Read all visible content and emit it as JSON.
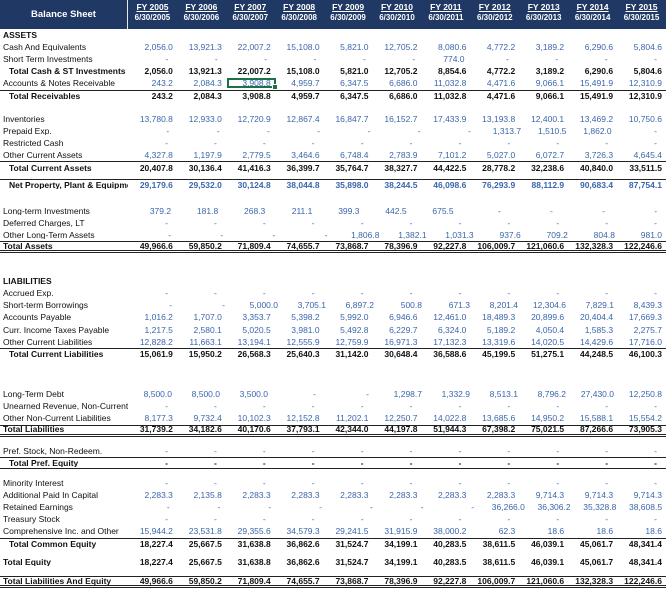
{
  "title": "Balance Sheet",
  "colors": {
    "header_bg": "#1f3864",
    "header_text": "#ffffff",
    "value_blue": "#3a66ad",
    "total_text": "#111111",
    "selection_green": "#1e7145"
  },
  "columns": [
    {
      "fy": "FY 2005",
      "date": "6/30/2005"
    },
    {
      "fy": "FY 2006",
      "date": "6/30/2006"
    },
    {
      "fy": "FY 2007",
      "date": "6/30/2007"
    },
    {
      "fy": "FY 2008",
      "date": "6/30/2008"
    },
    {
      "fy": "FY 2009",
      "date": "6/30/2009"
    },
    {
      "fy": "FY 2010",
      "date": "6/30/2010"
    },
    {
      "fy": "FY 2011",
      "date": "6/30/2011"
    },
    {
      "fy": "FY 2012",
      "date": "6/30/2012"
    },
    {
      "fy": "FY 2013",
      "date": "6/30/2013"
    },
    {
      "fy": "FY 2014",
      "date": "6/30/2014"
    },
    {
      "fy": "FY 2015",
      "date": "6/30/2015"
    }
  ],
  "selection": {
    "row_label": "Accounts & Notes Receivable",
    "column": "FY 2007",
    "col_index": 2,
    "value": "3,908.8"
  },
  "rows": [
    {
      "label": "ASSETS",
      "type": "section"
    },
    {
      "label": "Cash And Equivalents",
      "type": "data",
      "values": [
        "2,056.0",
        "13,921.3",
        "22,007.2",
        "15,108.0",
        "5,821.0",
        "12,705.2",
        "8,080.6",
        "4,772.2",
        "3,189.2",
        "6,290.6",
        "5,804.6"
      ]
    },
    {
      "label": "Short Term Investments",
      "type": "data",
      "values": [
        "-",
        "-",
        "-",
        "-",
        "-",
        "-",
        "774.0",
        "-",
        "-",
        "-",
        "-"
      ]
    },
    {
      "label": "Total Cash & ST Investments",
      "type": "total",
      "indent": true,
      "values": [
        "2,056.0",
        "13,921.3",
        "22,007.2",
        "15,108.0",
        "5,821.0",
        "12,705.2",
        "8,854.6",
        "4,772.2",
        "3,189.2",
        "6,290.6",
        "5,804.6"
      ]
    },
    {
      "label": "Accounts & Notes Receivable",
      "type": "data",
      "values": [
        "243.2",
        "2,084.3",
        "3,908.8",
        "4,959.7",
        "6,347.5",
        "6,686.0",
        "11,032.8",
        "4,471.6",
        "9,066.1",
        "15,491.9",
        "12,310.9"
      ]
    },
    {
      "label": "Total Receivables",
      "type": "total",
      "indent": true,
      "border_top": true,
      "values": [
        "243.2",
        "2,084.3",
        "3,908.8",
        "4,959.7",
        "6,347.5",
        "6,686.0",
        "11,032.8",
        "4,471.6",
        "9,066.1",
        "15,491.9",
        "12,310.9"
      ]
    },
    {
      "type": "blank",
      "h": 11
    },
    {
      "label": "Inventories",
      "type": "data",
      "values": [
        "13,780.8",
        "12,933.0",
        "12,720.9",
        "12,867.4",
        "16,847.7",
        "16,152.7",
        "17,433.9",
        "13,193.8",
        "12,400.1",
        "13,469.2",
        "10,750.6"
      ]
    },
    {
      "label": "Prepaid Exp.",
      "type": "data",
      "values": [
        "-",
        "-",
        "-",
        "-",
        "-",
        "-",
        "-",
        "1,313.7",
        "1,510.5",
        "1,862.0",
        "-"
      ]
    },
    {
      "label": "Restricted Cash",
      "type": "data",
      "values": [
        "-",
        "-",
        "-",
        "-",
        "-",
        "-",
        "-",
        "-",
        "-",
        "-",
        "-"
      ]
    },
    {
      "label": "Other Current Assets",
      "type": "data",
      "values": [
        "4,327.8",
        "1,197.9",
        "2,779.5",
        "3,464.6",
        "6,748.4",
        "2,783.9",
        "7,101.2",
        "5,027.0",
        "6,072.7",
        "3,726.3",
        "4,645.4"
      ]
    },
    {
      "label": "Total Current Assets",
      "type": "total",
      "indent": true,
      "border_top": true,
      "values": [
        "20,407.8",
        "30,136.4",
        "41,416.3",
        "36,399.7",
        "35,764.7",
        "38,327.7",
        "44,422.5",
        "28,778.2",
        "32,238.6",
        "40,840.0",
        "33,511.5"
      ]
    },
    {
      "type": "blank",
      "h": 5
    },
    {
      "label": "Net Property, Plant & Equipment",
      "type": "ppe",
      "indent": true,
      "border_top": true,
      "values": [
        "29,179.6",
        "29,532.0",
        "30,124.8",
        "38,044.8",
        "35,898.0",
        "38,244.5",
        "46,098.6",
        "76,293.9",
        "88,112.9",
        "90,683.4",
        "87,754.1"
      ]
    },
    {
      "type": "blank",
      "h": 14
    },
    {
      "label": "Long-term Investments",
      "type": "data",
      "values": [
        "379.2",
        "181.8",
        "268.3",
        "211.1",
        "399.3",
        "442.5",
        "675.5",
        "-",
        "-",
        "-",
        "-"
      ]
    },
    {
      "label": "Deferred Charges, LT",
      "type": "data",
      "values": [
        "-",
        "-",
        "-",
        "-",
        "-",
        "-",
        "-",
        "-",
        "-",
        "-",
        "-"
      ]
    },
    {
      "label": "Other Long-Term Assets",
      "type": "data",
      "values": [
        "-",
        "-",
        "-",
        "-",
        "1,806.8",
        "1,382.1",
        "1,031.3",
        "937.6",
        "709.2",
        "804.8",
        "981.0"
      ]
    },
    {
      "label": "Total Assets",
      "type": "total",
      "border_top": true,
      "border_bottom": "double",
      "values": [
        "49,966.6",
        "59,850.2",
        "71,809.4",
        "74,655.7",
        "73,868.7",
        "78,396.9",
        "92,227.8",
        "106,009.7",
        "121,060.6",
        "132,328.3",
        "122,246.6"
      ]
    },
    {
      "type": "blank",
      "h": 22
    },
    {
      "label": "LIABILITIES",
      "type": "section"
    },
    {
      "label": "Accrued Exp.",
      "type": "data",
      "values": [
        "-",
        "-",
        "-",
        "-",
        "-",
        "-",
        "-",
        "-",
        "-",
        "-",
        "-"
      ]
    },
    {
      "label": "Short-term Borrowings",
      "type": "data",
      "values": [
        "-",
        "-",
        "5,000.0",
        "3,705.1",
        "6,897.2",
        "500.8",
        "671.3",
        "8,201.4",
        "12,304.6",
        "7,829.1",
        "8,439.3"
      ]
    },
    {
      "label": "Accounts Payable",
      "type": "data",
      "values": [
        "1,016.2",
        "1,707.0",
        "3,353.7",
        "5,398.2",
        "5,992.0",
        "6,946.6",
        "12,461.0",
        "18,489.3",
        "20,899.6",
        "20,404.4",
        "17,669.3"
      ]
    },
    {
      "label": "Curr. Income Taxes Payable",
      "type": "data",
      "values": [
        "1,217.5",
        "2,580.1",
        "5,020.5",
        "3,981.0",
        "5,492.8",
        "6,229.7",
        "6,324.0",
        "5,189.2",
        "4,050.4",
        "1,585.3",
        "2,275.7"
      ]
    },
    {
      "label": "Other Current Liabilities",
      "type": "data",
      "values": [
        "12,828.2",
        "11,663.1",
        "13,194.1",
        "12,555.9",
        "12,759.9",
        "16,971.3",
        "17,132.3",
        "13,319.6",
        "14,020.5",
        "14,429.6",
        "17,716.0"
      ]
    },
    {
      "label": "Total Current Liabilities",
      "type": "total",
      "indent": true,
      "border_top": true,
      "values": [
        "15,061.9",
        "15,950.2",
        "26,568.3",
        "25,640.3",
        "31,142.0",
        "30,648.4",
        "36,588.6",
        "45,199.5",
        "51,275.1",
        "44,248.5",
        "46,100.3"
      ]
    },
    {
      "type": "blank",
      "h": 28
    },
    {
      "label": "Long-Term Debt",
      "type": "data",
      "values": [
        "8,500.0",
        "8,500.0",
        "3,500.0",
        "-",
        "-",
        "1,298.7",
        "1,332.9",
        "8,513.1",
        "8,796.2",
        "27,430.0",
        "12,250.8"
      ]
    },
    {
      "label": "Unearned Revenue, Non-Current",
      "type": "data",
      "values": [
        "-",
        "-",
        "-",
        "-",
        "-",
        "-",
        "-",
        "-",
        "-",
        "-",
        "-"
      ]
    },
    {
      "label": "Other Non-Current Liabilities",
      "type": "data",
      "values": [
        "8,177.3",
        "9,732.4",
        "10,102.3",
        "12,152.8",
        "11,202.1",
        "12,250.7",
        "14,022.8",
        "13,685.6",
        "14,950.2",
        "15,588.1",
        "15,554.2"
      ]
    },
    {
      "label": "Total Liabilities",
      "type": "total",
      "border_top": true,
      "border_bottom": "double",
      "values": [
        "31,739.2",
        "34,182.6",
        "40,170.6",
        "37,793.1",
        "42,344.0",
        "44,197.8",
        "51,944.3",
        "67,398.2",
        "75,021.5",
        "87,266.6",
        "73,905.3"
      ]
    },
    {
      "type": "blank",
      "h": 8
    },
    {
      "label": "Pref. Stock, Non-Redeem.",
      "type": "data",
      "values": [
        "-",
        "-",
        "-",
        "-",
        "-",
        "-",
        "-",
        "-",
        "-",
        "-",
        "-"
      ]
    },
    {
      "label": "Total Pref. Equity",
      "type": "total",
      "indent": true,
      "border_top": true,
      "border_bottom": "single",
      "values": [
        "-",
        "-",
        "-",
        "-",
        "-",
        "-",
        "-",
        "-",
        "-",
        "-",
        "-"
      ]
    },
    {
      "type": "blank",
      "h": 8
    },
    {
      "label": "Minority Interest",
      "type": "data",
      "values": [
        "-",
        "-",
        "-",
        "-",
        "-",
        "-",
        "-",
        "-",
        "-",
        "-",
        "-"
      ]
    },
    {
      "label": "Additional Paid In Capital",
      "type": "data",
      "values": [
        "2,283.3",
        "2,135.8",
        "2,283.3",
        "2,283.3",
        "2,283.3",
        "2,283.3",
        "2,283.3",
        "2,283.3",
        "9,714.3",
        "9,714.3",
        "9,714.3"
      ]
    },
    {
      "label": "Retained Earnings",
      "type": "data",
      "values": [
        "-",
        "-",
        "-",
        "-",
        "-",
        "-",
        "-",
        "36,266.0",
        "36,306.2",
        "35,328.8",
        "38,608.5"
      ]
    },
    {
      "label": "Treasury Stock",
      "type": "data",
      "values": [
        "-",
        "-",
        "-",
        "-",
        "-",
        "-",
        "-",
        "-",
        "-",
        "-",
        "-"
      ]
    },
    {
      "label": "Comprehensive Inc. and Other",
      "type": "data",
      "values": [
        "15,944.2",
        "23,531.8",
        "29,355.6",
        "34,579.3",
        "29,241.5",
        "31,915.9",
        "38,000.2",
        "62.3",
        "18.6",
        "18.6",
        "18.6"
      ]
    },
    {
      "label": "Total Common Equity",
      "type": "total",
      "indent": true,
      "border_top": true,
      "values": [
        "18,227.4",
        "25,667.5",
        "31,638.8",
        "36,862.6",
        "31,524.7",
        "34,199.1",
        "40,283.5",
        "38,611.5",
        "46,039.1",
        "45,061.7",
        "48,341.4"
      ]
    },
    {
      "type": "blank",
      "h": 6
    },
    {
      "label": "Total Equity",
      "type": "total",
      "values": [
        "18,227.4",
        "25,667.5",
        "31,638.8",
        "36,862.6",
        "31,524.7",
        "34,199.1",
        "40,283.5",
        "38,611.5",
        "46,039.1",
        "45,061.7",
        "48,341.4"
      ]
    },
    {
      "type": "blank",
      "h": 8
    },
    {
      "label": "Total Liabilities And Equity",
      "type": "total",
      "border_top": true,
      "border_bottom": "double",
      "values": [
        "49,966.6",
        "59,850.2",
        "71,809.4",
        "74,655.7",
        "73,868.7",
        "78,396.9",
        "92,227.8",
        "106,009.7",
        "121,060.6",
        "132,328.3",
        "122,246.6"
      ]
    }
  ]
}
